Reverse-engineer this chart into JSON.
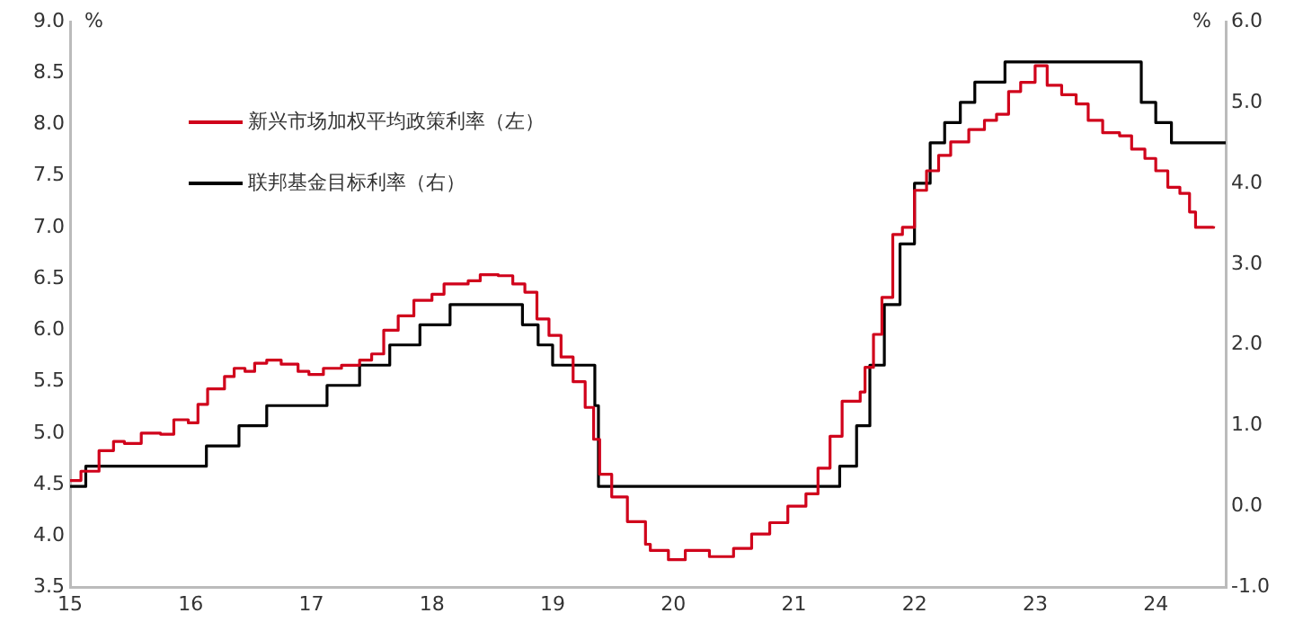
{
  "chart_data": {
    "type": "step",
    "ylabel": "%",
    "y2label": "%",
    "xlim": [
      15,
      24.58
    ],
    "xticks": [
      15,
      16,
      17,
      18,
      19,
      20,
      21,
      22,
      23,
      24
    ],
    "ylim": [
      3.5,
      9.0
    ],
    "yticks": [
      {
        "value": 3.5,
        "label": "3.5"
      },
      {
        "value": 4,
        "label": "4.0"
      },
      {
        "value": 4.5,
        "label": "4.5"
      },
      {
        "value": 5,
        "label": "5.0"
      },
      {
        "value": 5.5,
        "label": "5.5"
      },
      {
        "value": 6,
        "label": "6.0"
      },
      {
        "value": 6.5,
        "label": "6.5"
      },
      {
        "value": 7,
        "label": "7.0"
      },
      {
        "value": 7.5,
        "label": "7.5"
      },
      {
        "value": 8,
        "label": "8.0"
      },
      {
        "value": 8.5,
        "label": "8.5"
      },
      {
        "value": 9,
        "label": "9.0"
      }
    ],
    "y2lim": [
      -1,
      6
    ],
    "y2ticks": [
      {
        "value": -1,
        "label": "-1.0"
      },
      {
        "value": 0,
        "label": "0.0"
      },
      {
        "value": 1,
        "label": "1.0"
      },
      {
        "value": 2,
        "label": "2.0"
      },
      {
        "value": 3,
        "label": "3.0"
      },
      {
        "value": 4,
        "label": "4.0"
      },
      {
        "value": 5,
        "label": "5.0"
      },
      {
        "value": 6,
        "label": "6.0"
      }
    ],
    "grid": false,
    "legend": "top left",
    "series": [
      {
        "name": "新兴市场加权平均政策利率（左）",
        "color": "#d0021b",
        "axis": "y",
        "x": [
          15,
          15.09,
          15.24,
          15.36,
          15.45,
          15.59,
          15.75,
          15.86,
          15.98,
          16.06,
          16.14,
          16.28,
          16.36,
          16.45,
          16.53,
          16.63,
          16.75,
          16.89,
          16.98,
          17.1,
          17.25,
          17.4,
          17.5,
          17.6,
          17.72,
          17.85,
          18,
          18.1,
          18.3,
          18.4,
          18.55,
          18.67,
          18.77,
          18.87,
          18.97,
          19.07,
          19.17,
          19.27,
          19.34,
          19.39,
          19.49,
          19.62,
          19.77,
          19.81,
          19.96,
          20.1,
          20.3,
          20.5,
          20.65,
          20.8,
          20.95,
          21.1,
          21.2,
          21.3,
          21.4,
          21.55,
          21.59,
          21.66,
          21.73,
          21.82,
          21.9,
          22,
          22.1,
          22.2,
          22.3,
          22.45,
          22.58,
          22.68,
          22.78,
          22.88,
          23,
          23.1,
          23.22,
          23.34,
          23.44,
          23.56,
          23.7,
          23.8,
          23.91,
          24,
          24.1,
          24.2,
          24.28,
          24.33,
          24.48
        ],
        "values": [
          4.54,
          4.63,
          4.83,
          4.92,
          4.9,
          5.0,
          4.99,
          5.13,
          5.1,
          5.28,
          5.43,
          5.55,
          5.63,
          5.6,
          5.68,
          5.71,
          5.67,
          5.6,
          5.57,
          5.63,
          5.66,
          5.71,
          5.77,
          6.0,
          6.14,
          6.29,
          6.35,
          6.45,
          6.48,
          6.54,
          6.53,
          6.45,
          6.37,
          6.11,
          5.95,
          5.74,
          5.5,
          5.25,
          4.94,
          4.6,
          4.38,
          4.14,
          3.92,
          3.86,
          3.77,
          3.86,
          3.8,
          3.88,
          4.02,
          4.13,
          4.29,
          4.41,
          4.66,
          4.97,
          5.31,
          5.4,
          5.64,
          5.96,
          6.32,
          6.93,
          7.0,
          7.36,
          7.55,
          7.7,
          7.83,
          7.95,
          8.04,
          8.1,
          8.32,
          8.41,
          8.57,
          8.38,
          8.29,
          8.2,
          8.04,
          7.92,
          7.89,
          7.76,
          7.67,
          7.55,
          7.39,
          7.33,
          7.15,
          7.0,
          7.01
        ]
      },
      {
        "name": "联邦基金目标利率（右）",
        "color": "#000000",
        "axis": "y2",
        "x": [
          15,
          15.13,
          16.13,
          16.4,
          16.63,
          17.13,
          17.4,
          17.65,
          17.9,
          18.15,
          18.75,
          18.88,
          19.0,
          19.35,
          19.38,
          21.38,
          21.52,
          21.63,
          21.75,
          21.88,
          22.0,
          22.13,
          22.25,
          22.38,
          22.5,
          22.75,
          23.88,
          24.0,
          24.13,
          24.58
        ],
        "values": [
          0.25,
          0.5,
          0.75,
          1.0,
          1.25,
          1.5,
          1.75,
          2.0,
          2.25,
          2.5,
          2.25,
          2.0,
          1.75,
          1.25,
          0.25,
          0.5,
          1.0,
          1.75,
          2.5,
          3.25,
          4.0,
          4.5,
          4.75,
          5.0,
          5.25,
          5.5,
          5.0,
          4.75,
          4.5,
          4.5
        ]
      }
    ]
  }
}
